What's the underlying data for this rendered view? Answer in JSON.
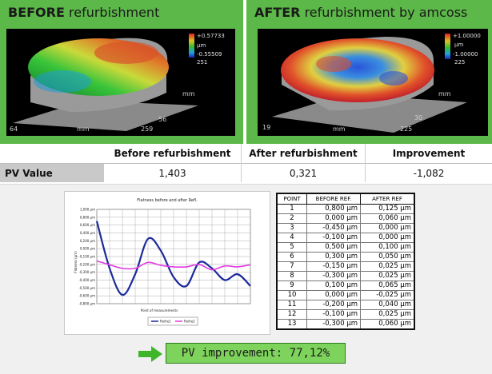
{
  "panels": {
    "before": {
      "title_bold": "BEFORE",
      "title_rest": " refurbishment",
      "colorbar_labels": [
        "+0.57733",
        "μm",
        "-0.55509",
        "251"
      ],
      "axis_labels": [
        "mm",
        "64",
        "mm",
        "259",
        "56"
      ]
    },
    "after": {
      "title_bold": "AFTER",
      "title_rest": " refurbishment by amcoss",
      "colorbar_labels": [
        "+1.00000",
        "μm",
        "-1.00000",
        "225"
      ],
      "axis_labels": [
        "mm",
        "19",
        "mm",
        "225",
        "30"
      ]
    }
  },
  "results": {
    "headers": [
      "Before refurbishment",
      "After refurbishment",
      "Improvement"
    ],
    "row_label": "PV Value",
    "values": [
      "1,403",
      "0,321",
      "-1,082"
    ]
  },
  "chart_data": {
    "type": "line",
    "title": "Flatness before and after Refl.",
    "xlabel": "Point of measurements",
    "ylabel": "Flatness (μm)",
    "x": [
      1,
      2,
      3,
      4,
      5,
      6,
      7,
      8,
      9,
      10,
      11,
      12,
      13
    ],
    "yticks": [
      "1,000 μm",
      "0,800 μm",
      "0,600 μm",
      "0,400 μm",
      "0,200 μm",
      "0,000 μm",
      "-0,100 μm",
      "-0,200 μm",
      "-0,300 μm",
      "-0,400 μm",
      "-0,500 μm",
      "-0,600 μm",
      "-0,800 μm"
    ],
    "ylim": [
      -0.6,
      1.0
    ],
    "grid": true,
    "legend_position": "bottom",
    "series": [
      {
        "name": "Reihe1",
        "color": "#1c2a9a",
        "values": [
          0.8,
          0.0,
          -0.45,
          -0.1,
          0.5,
          0.3,
          -0.15,
          -0.3,
          0.1,
          0.0,
          -0.2,
          -0.1,
          -0.3
        ]
      },
      {
        "name": "Reihe2",
        "color": "#e23ae2",
        "values": [
          0.125,
          0.06,
          0.0,
          0.0,
          0.1,
          0.05,
          0.025,
          0.025,
          0.065,
          -0.025,
          0.04,
          0.025,
          0.06
        ]
      }
    ]
  },
  "table": {
    "headers": [
      "POINT",
      "BEFORE REF.",
      "AFTER REF"
    ],
    "rows": [
      [
        "1",
        "0,800 µm",
        "0,125 µm"
      ],
      [
        "2",
        "0,000 µm",
        "0,060 µm"
      ],
      [
        "3",
        "-0,450 µm",
        "0,000 µm"
      ],
      [
        "4",
        "-0,100 µm",
        "0,000 µm"
      ],
      [
        "5",
        "0,500 µm",
        "0,100 µm"
      ],
      [
        "6",
        "0,300 µm",
        "0,050 µm"
      ],
      [
        "7",
        "-0,150 µm",
        "0,025 µm"
      ],
      [
        "8",
        "-0,300 µm",
        "0,025 µm"
      ],
      [
        "9",
        "0,100 µm",
        "0,065 µm"
      ],
      [
        "10",
        "0,000 µm",
        "-0,025 µm"
      ],
      [
        "11",
        "-0,200 µm",
        "0,040 µm"
      ],
      [
        "12",
        "-0,100 µm",
        "0,025 µm"
      ],
      [
        "13",
        "-0,300 µm",
        "0,060 µm"
      ]
    ]
  },
  "pv_improvement": "PV improvement: 77,12%",
  "colors": {
    "panel_green": "#5cb848",
    "pv_box": "#7ed35c",
    "arrow": "#3fb52a"
  }
}
